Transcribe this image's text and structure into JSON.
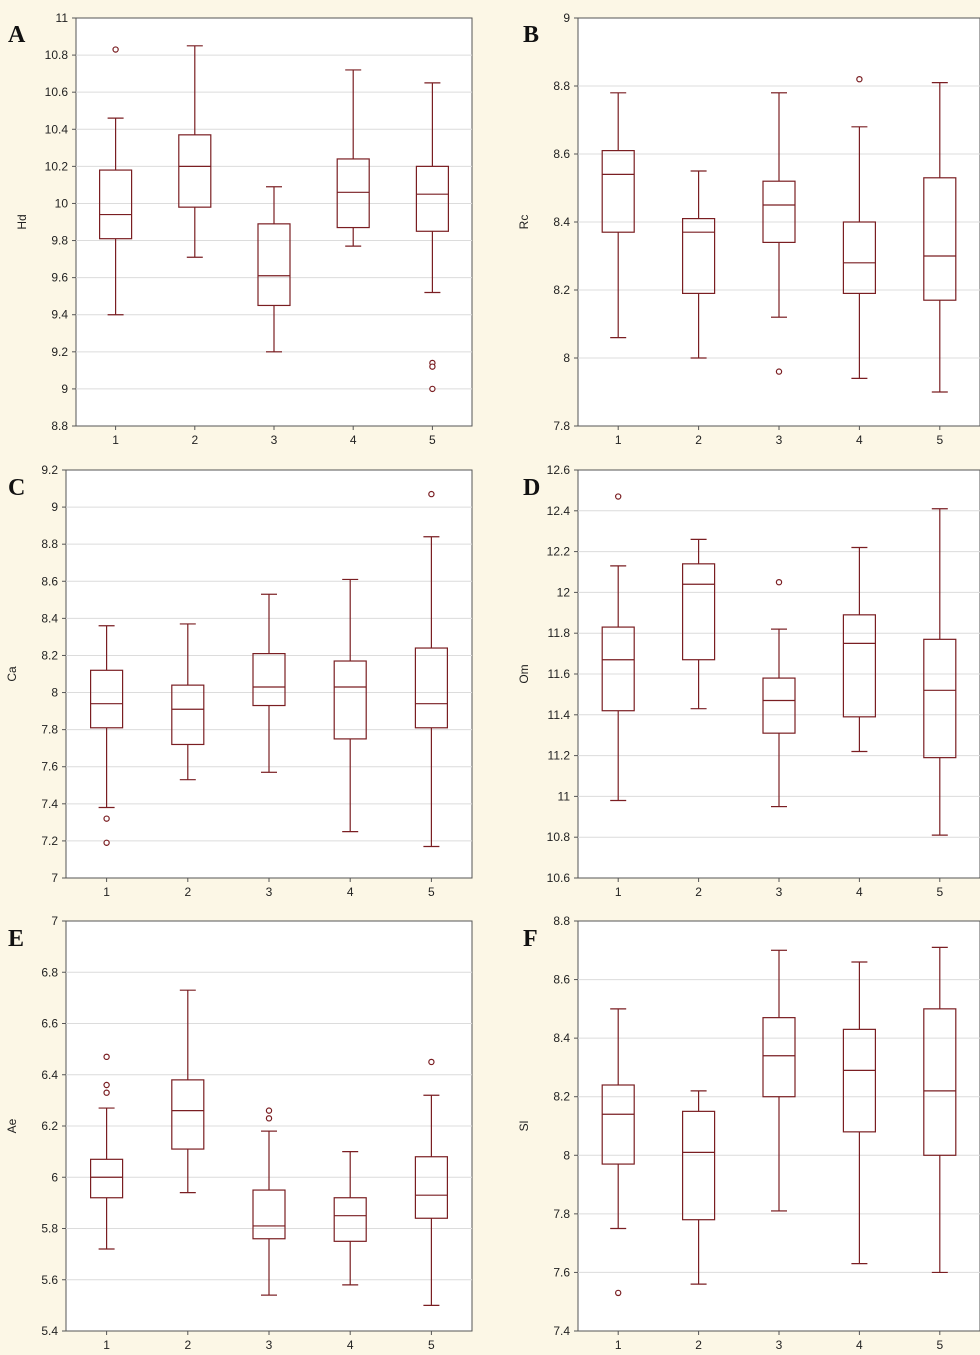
{
  "colors": {
    "box": "#7a1e22",
    "grid": "#dcdcdc",
    "background": "#fcf7e6"
  },
  "chart_data": [
    {
      "panel": "A",
      "type": "box",
      "ylabel": "Hd",
      "categories": [
        "1",
        "2",
        "3",
        "4",
        "5"
      ],
      "ylim": [
        8.8,
        11
      ],
      "yticks": [
        "8.8",
        "9",
        "9.2",
        "9.4",
        "9.6",
        "9.8",
        "10",
        "10.2",
        "10.4",
        "10.6",
        "10.8",
        "11"
      ],
      "grid": true,
      "boxes": [
        {
          "whisker_low": 9.4,
          "q1": 9.81,
          "median": 9.94,
          "q3": 10.18,
          "whisker_high": 10.46,
          "outliers": [
            10.83
          ]
        },
        {
          "whisker_low": 9.71,
          "q1": 9.98,
          "median": 10.2,
          "q3": 10.37,
          "whisker_high": 10.85,
          "outliers": []
        },
        {
          "whisker_low": 9.2,
          "q1": 9.45,
          "median": 9.61,
          "q3": 9.89,
          "whisker_high": 10.09,
          "outliers": []
        },
        {
          "whisker_low": 9.77,
          "q1": 9.87,
          "median": 10.06,
          "q3": 10.24,
          "whisker_high": 10.72,
          "outliers": []
        },
        {
          "whisker_low": 9.52,
          "q1": 9.85,
          "median": 10.05,
          "q3": 10.2,
          "whisker_high": 10.65,
          "outliers": [
            9.14,
            9.12,
            9.0
          ]
        }
      ]
    },
    {
      "panel": "B",
      "type": "box",
      "ylabel": "Rc",
      "categories": [
        "1",
        "2",
        "3",
        "4",
        "5"
      ],
      "ylim": [
        7.8,
        9
      ],
      "yticks": [
        "7.8",
        "8",
        "8.2",
        "8.4",
        "8.6",
        "8.8",
        "9"
      ],
      "grid": true,
      "boxes": [
        {
          "whisker_low": 8.06,
          "q1": 8.37,
          "median": 8.54,
          "q3": 8.61,
          "whisker_high": 8.78,
          "outliers": []
        },
        {
          "whisker_low": 8.0,
          "q1": 8.19,
          "median": 8.37,
          "q3": 8.41,
          "whisker_high": 8.55,
          "outliers": []
        },
        {
          "whisker_low": 8.12,
          "q1": 8.34,
          "median": 8.45,
          "q3": 8.52,
          "whisker_high": 8.78,
          "outliers": [
            7.96
          ]
        },
        {
          "whisker_low": 7.94,
          "q1": 8.19,
          "median": 8.28,
          "q3": 8.4,
          "whisker_high": 8.68,
          "outliers": [
            8.82
          ]
        },
        {
          "whisker_low": 7.9,
          "q1": 8.17,
          "median": 8.3,
          "q3": 8.53,
          "whisker_high": 8.81,
          "outliers": []
        }
      ]
    },
    {
      "panel": "C",
      "type": "box",
      "ylabel": "Ca",
      "categories": [
        "1",
        "2",
        "3",
        "4",
        "5"
      ],
      "ylim": [
        7,
        9.2
      ],
      "yticks": [
        "7",
        "7.2",
        "7.4",
        "7.6",
        "7.8",
        "8",
        "8.2",
        "8.4",
        "8.6",
        "8.8",
        "9",
        "9.2"
      ],
      "grid": true,
      "boxes": [
        {
          "whisker_low": 7.38,
          "q1": 7.81,
          "median": 7.94,
          "q3": 8.12,
          "whisker_high": 8.36,
          "outliers": [
            7.32,
            7.19
          ]
        },
        {
          "whisker_low": 7.53,
          "q1": 7.72,
          "median": 7.91,
          "q3": 8.04,
          "whisker_high": 8.37,
          "outliers": []
        },
        {
          "whisker_low": 7.57,
          "q1": 7.93,
          "median": 8.03,
          "q3": 8.21,
          "whisker_high": 8.53,
          "outliers": []
        },
        {
          "whisker_low": 7.25,
          "q1": 7.75,
          "median": 8.03,
          "q3": 8.17,
          "whisker_high": 8.61,
          "outliers": []
        },
        {
          "whisker_low": 7.17,
          "q1": 7.81,
          "median": 7.94,
          "q3": 8.24,
          "whisker_high": 8.84,
          "outliers": [
            9.07
          ]
        }
      ]
    },
    {
      "panel": "D",
      "type": "box",
      "ylabel": "Om",
      "categories": [
        "1",
        "2",
        "3",
        "4",
        "5"
      ],
      "ylim": [
        10.6,
        12.6
      ],
      "yticks": [
        "10.6",
        "10.8",
        "11",
        "11.2",
        "11.4",
        "11.6",
        "11.8",
        "12",
        "12.2",
        "12.4",
        "12.6"
      ],
      "grid": true,
      "boxes": [
        {
          "whisker_low": 10.98,
          "q1": 11.42,
          "median": 11.67,
          "q3": 11.83,
          "whisker_high": 12.13,
          "outliers": [
            12.47
          ]
        },
        {
          "whisker_low": 11.43,
          "q1": 11.67,
          "median": 12.04,
          "q3": 12.14,
          "whisker_high": 12.26,
          "outliers": []
        },
        {
          "whisker_low": 10.95,
          "q1": 11.31,
          "median": 11.47,
          "q3": 11.58,
          "whisker_high": 11.82,
          "outliers": [
            12.05
          ]
        },
        {
          "whisker_low": 11.22,
          "q1": 11.39,
          "median": 11.75,
          "q3": 11.89,
          "whisker_high": 12.22,
          "outliers": []
        },
        {
          "whisker_low": 10.81,
          "q1": 11.19,
          "median": 11.52,
          "q3": 11.77,
          "whisker_high": 12.41,
          "outliers": []
        }
      ]
    },
    {
      "panel": "E",
      "type": "box",
      "ylabel": "Ae",
      "categories": [
        "1",
        "2",
        "3",
        "4",
        "5"
      ],
      "ylim": [
        5.4,
        7
      ],
      "yticks": [
        "5.4",
        "5.6",
        "5.8",
        "6",
        "6.2",
        "6.4",
        "6.6",
        "6.8",
        "7"
      ],
      "grid": true,
      "boxes": [
        {
          "whisker_low": 5.72,
          "q1": 5.92,
          "median": 6.0,
          "q3": 6.07,
          "whisker_high": 6.27,
          "outliers": [
            6.47,
            6.36,
            6.33
          ]
        },
        {
          "whisker_low": 5.94,
          "q1": 6.11,
          "median": 6.26,
          "q3": 6.38,
          "whisker_high": 6.73,
          "outliers": []
        },
        {
          "whisker_low": 5.54,
          "q1": 5.76,
          "median": 5.81,
          "q3": 5.95,
          "whisker_high": 6.18,
          "outliers": [
            6.26,
            6.23
          ]
        },
        {
          "whisker_low": 5.58,
          "q1": 5.75,
          "median": 5.85,
          "q3": 5.92,
          "whisker_high": 6.1,
          "outliers": []
        },
        {
          "whisker_low": 5.5,
          "q1": 5.84,
          "median": 5.93,
          "q3": 6.08,
          "whisker_high": 6.32,
          "outliers": [
            6.45
          ]
        }
      ]
    },
    {
      "panel": "F",
      "type": "box",
      "ylabel": "Sl",
      "categories": [
        "1",
        "2",
        "3",
        "4",
        "5"
      ],
      "ylim": [
        7.4,
        8.8
      ],
      "yticks": [
        "7.4",
        "7.6",
        "7.8",
        "8",
        "8.2",
        "8.4",
        "8.6",
        "8.8"
      ],
      "grid": true,
      "boxes": [
        {
          "whisker_low": 7.75,
          "q1": 7.97,
          "median": 8.14,
          "q3": 8.24,
          "whisker_high": 8.5,
          "outliers": [
            7.53
          ]
        },
        {
          "whisker_low": 7.56,
          "q1": 7.78,
          "median": 8.01,
          "q3": 8.15,
          "whisker_high": 8.22,
          "outliers": []
        },
        {
          "whisker_low": 7.81,
          "q1": 8.2,
          "median": 8.34,
          "q3": 8.47,
          "whisker_high": 8.7,
          "outliers": []
        },
        {
          "whisker_low": 7.63,
          "q1": 8.08,
          "median": 8.29,
          "q3": 8.43,
          "whisker_high": 8.66,
          "outliers": []
        },
        {
          "whisker_low": 7.6,
          "q1": 8.0,
          "median": 8.22,
          "q3": 8.5,
          "whisker_high": 8.71,
          "outliers": []
        }
      ]
    }
  ]
}
